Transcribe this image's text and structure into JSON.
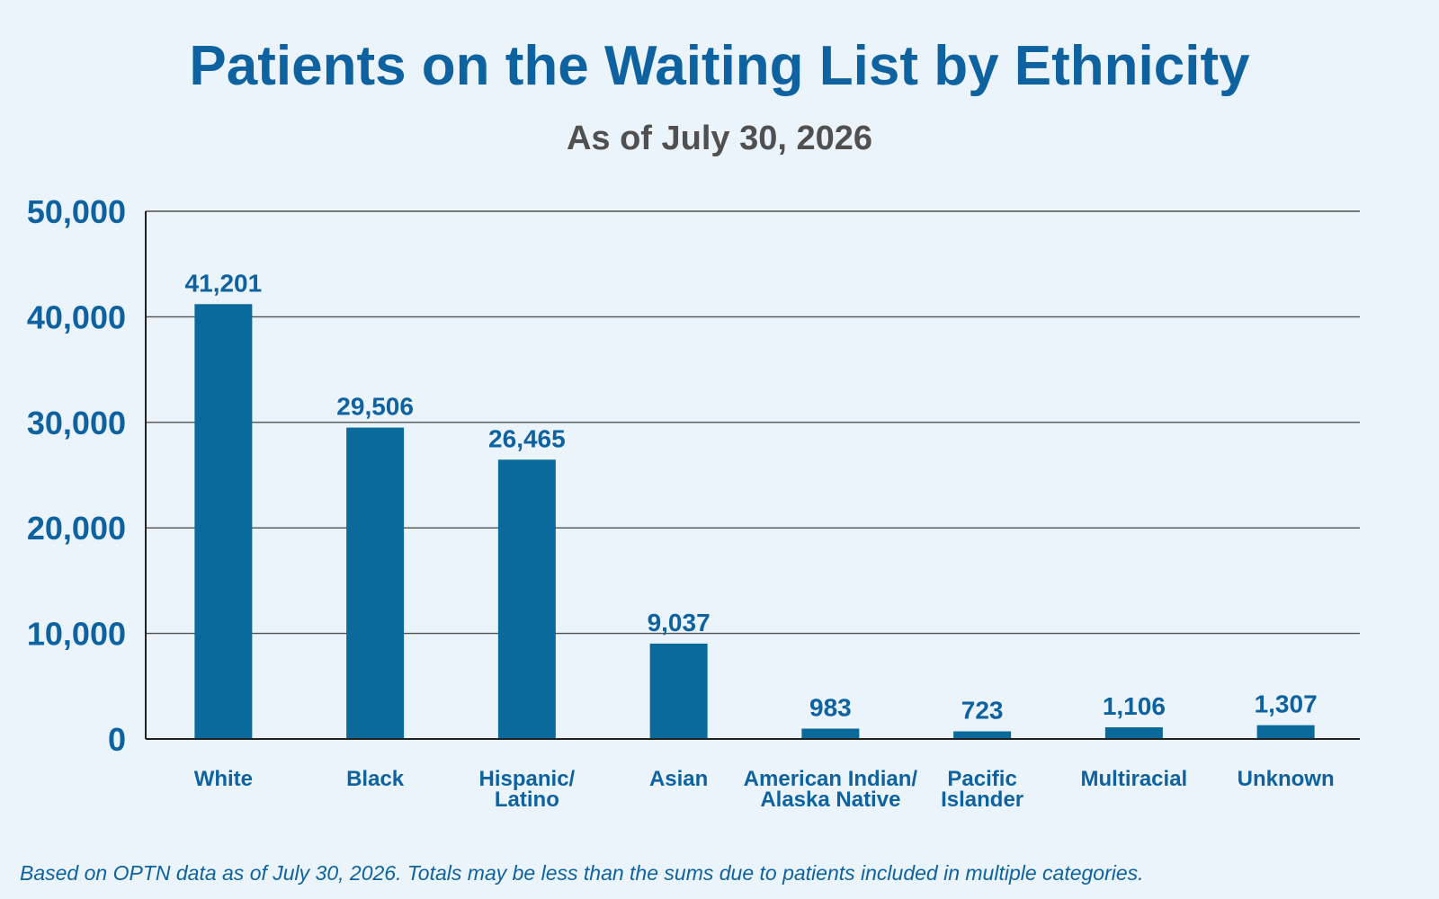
{
  "title": "Patients on the Waiting List by Ethnicity",
  "subtitle": "As of July 30, 2026",
  "footnote": "Based on OPTN data as of July 30, 2026. Totals may be less than the sums due to patients included in multiple categories.",
  "colors": {
    "background": "#eaf4fa",
    "bar": "#0a6a9c",
    "title": "#0e62a0",
    "subtitle": "#505050",
    "axis_text": "#0e62a0",
    "gridline": "#505050"
  },
  "chart_data": {
    "type": "bar",
    "title": "Patients on the Waiting List by Ethnicity",
    "subtitle": "As of July 30, 2026",
    "xlabel": "",
    "ylabel": "",
    "categories": [
      [
        "White"
      ],
      [
        "Black"
      ],
      [
        "Hispanic/",
        "Latino"
      ],
      [
        "Asian"
      ],
      [
        "American Indian/",
        "Alaska Native"
      ],
      [
        "Pacific",
        "Islander"
      ],
      [
        "Multiracial"
      ],
      [
        "Unknown"
      ]
    ],
    "values": [
      41201,
      29506,
      26465,
      9037,
      983,
      723,
      1106,
      1307
    ],
    "value_labels": [
      "41,201",
      "29,506",
      "26,465",
      "9,037",
      "983",
      "723",
      "1,106",
      "1,307"
    ],
    "ylim": [
      0,
      50000
    ],
    "yticks": [
      0,
      10000,
      20000,
      30000,
      40000,
      50000
    ],
    "ytick_labels": [
      "0",
      "10,000",
      "20,000",
      "30,000",
      "40,000",
      "50,000"
    ],
    "grid": true,
    "legend": "none"
  }
}
